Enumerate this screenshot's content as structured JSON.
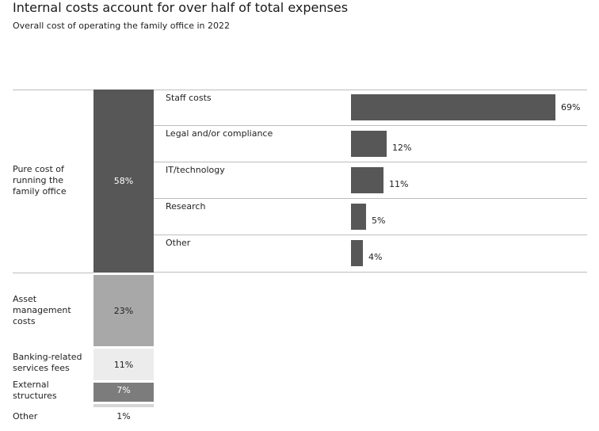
{
  "title": "Internal costs account for over half of total expenses",
  "subtitle": "Overall cost of operating the family office in 2022",
  "colors": {
    "dark": "#575757",
    "mid": "#a8a8a8",
    "light": "#ececec",
    "medium_dark": "#7c7c7c",
    "faint": "#d6d6d6"
  },
  "chart_data": [
    {
      "type": "bar",
      "orientation": "stacked-vertical",
      "categories": [
        "Pure cost of running the family office",
        "Asset management costs",
        "Banking-related services fees",
        "External structures",
        "Other"
      ],
      "values": [
        58,
        23,
        11,
        7,
        1
      ],
      "value_labels": [
        "58%",
        "23%",
        "11%",
        "7%",
        "1%"
      ],
      "unit": "%"
    },
    {
      "type": "bar",
      "orientation": "horizontal",
      "categories": [
        "Staff costs",
        "Legal and/or compliance",
        "IT/technology",
        "Research",
        "Other"
      ],
      "values": [
        69,
        12,
        11,
        5,
        4
      ],
      "value_labels": [
        "69%",
        "12%",
        "11%",
        "5%",
        "4%"
      ],
      "unit": "%"
    }
  ]
}
